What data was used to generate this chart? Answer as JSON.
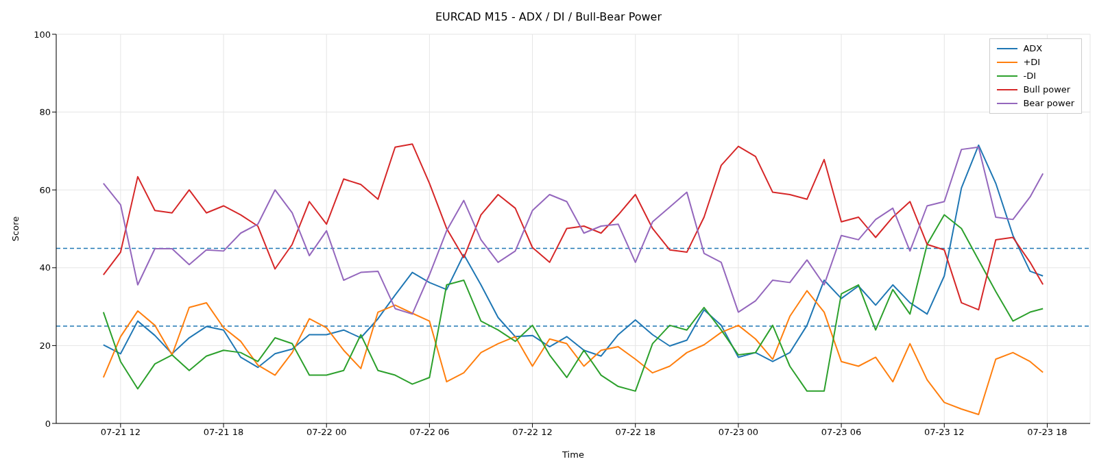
{
  "chart_data": {
    "type": "line",
    "title": "EURCAD M15 - ADX / DI / Bull-Bear Power",
    "xlabel": "Time",
    "ylabel": "Score",
    "x": [
      "--07-21T11:00",
      "--07-21T12:00",
      "--07-21T13:00",
      "--07-21T14:00",
      "--07-21T15:00",
      "--07-21T16:00",
      "--07-21T17:00",
      "--07-21T18:00",
      "--07-21T19:00",
      "--07-21T20:00",
      "--07-21T21:00",
      "--07-21T22:00",
      "--07-21T23:00",
      "--07-22T00:00",
      "--07-22T01:00",
      "--07-22T02:00",
      "--07-22T03:00",
      "--07-22T04:00",
      "--07-22T05:00",
      "--07-22T06:00",
      "--07-22T07:00",
      "--07-22T08:00",
      "--07-22T09:00",
      "--07-22T10:00",
      "--07-22T11:00",
      "--07-22T12:00",
      "--07-22T13:00",
      "--07-22T14:00",
      "--07-22T15:00",
      "--07-22T16:00",
      "--07-22T17:00",
      "--07-22T18:00",
      "--07-22T19:00",
      "--07-22T20:00",
      "--07-22T21:00",
      "--07-22T22:00",
      "--07-22T23:00",
      "--07-23T00:00",
      "--07-23T01:00",
      "--07-23T02:00",
      "--07-23T03:00",
      "--07-23T04:00",
      "--07-23T05:00",
      "--07-23T06:00",
      "--07-23T07:00",
      "--07-23T08:00",
      "--07-23T09:00",
      "--07-23T10:00",
      "--07-23T11:00",
      "--07-23T12:00",
      "--07-23T13:00",
      "--07-23T14:00",
      "--07-23T15:00",
      "--07-23T16:00",
      "--07-23T17:00",
      "--07-23T17:45"
    ],
    "series": [
      {
        "name": "ADX",
        "color": "#1f77b4",
        "values": [
          20.2,
          17.9,
          26.3,
          22.6,
          17.9,
          22,
          24.9,
          24,
          17,
          14.4,
          17.9,
          19.1,
          22.8,
          22.8,
          24,
          22,
          26.9,
          33,
          38.8,
          36.2,
          34.4,
          43.4,
          35.6,
          27.2,
          22.3,
          22.6,
          19.7,
          22.3,
          18.8,
          17.3,
          22.8,
          26.6,
          22.8,
          19.9,
          21.4,
          29.2,
          25.2,
          17,
          18.2,
          15.9,
          18.2,
          25.2,
          36.8,
          32.1,
          35.3,
          30.4,
          35.6,
          31,
          28.1,
          37.9,
          60.5,
          71.5,
          61.7,
          48.3,
          39.1,
          37.9
        ]
      },
      {
        "name": "+DI",
        "color": "#ff7f0e",
        "values": [
          11.8,
          22.3,
          28.9,
          25.2,
          17.6,
          29.8,
          31,
          24.6,
          21.1,
          15,
          12.4,
          18.2,
          26.9,
          24.6,
          18.8,
          14.1,
          28.6,
          30.4,
          28.3,
          26.3,
          10.7,
          13,
          18.2,
          20.5,
          22.3,
          14.7,
          21.7,
          20.5,
          14.7,
          18.8,
          19.7,
          16.5,
          13,
          14.7,
          18.2,
          20.2,
          23.4,
          25.2,
          21.7,
          16.5,
          27.5,
          34.1,
          28.6,
          15.9,
          14.7,
          17,
          10.7,
          20.5,
          11.2,
          5.4,
          3.7,
          2.3,
          16.5,
          18.2,
          15.9,
          13.1
        ]
      },
      {
        "name": "-DI",
        "color": "#2ca02c",
        "values": [
          28.6,
          15.9,
          8.9,
          15.3,
          17.6,
          13.6,
          17.3,
          18.8,
          18.2,
          15.9,
          22,
          20.5,
          12.4,
          12.4,
          13.6,
          22.8,
          13.6,
          12.4,
          10.1,
          11.8,
          35.6,
          36.8,
          26.3,
          24,
          21.1,
          25.2,
          17.6,
          11.8,
          18.8,
          12.4,
          9.5,
          8.3,
          20.5,
          25.2,
          24,
          29.8,
          24,
          17.6,
          18.2,
          25.2,
          14.7,
          8.3,
          8.3,
          33.3,
          35.6,
          24,
          34.4,
          28.1,
          46,
          53.6,
          50.1,
          42,
          33.9,
          26.3,
          28.6,
          29.5
        ]
      },
      {
        "name": "Bull power",
        "color": "#d62728",
        "values": [
          38.2,
          44,
          63.4,
          54.7,
          54.1,
          60,
          54.1,
          55.9,
          53.6,
          50.7,
          39.7,
          46,
          57,
          51.2,
          62.8,
          61.4,
          57.6,
          71,
          71.8,
          61.7,
          50.1,
          42.6,
          53.6,
          58.8,
          55.3,
          45.2,
          41.4,
          50.1,
          50.7,
          48.9,
          53.6,
          58.8,
          50.1,
          44.6,
          44,
          53,
          66.3,
          71.2,
          68.6,
          59.4,
          58.8,
          57.6,
          67.8,
          51.8,
          53,
          47.8,
          53,
          57,
          46,
          44.6,
          31,
          29.2,
          47.2,
          47.8,
          41.4,
          35.7
        ]
      },
      {
        "name": "Bear power",
        "color": "#9467bd",
        "values": [
          61.7,
          56.2,
          35.6,
          44.9,
          44.9,
          40.8,
          44.6,
          44.3,
          48.9,
          51.2,
          60,
          54.1,
          43.1,
          49.5,
          36.8,
          38.8,
          39.1,
          29.5,
          28.1,
          38.2,
          49.5,
          57.3,
          47.2,
          41.4,
          44.3,
          54.7,
          58.8,
          57,
          48.9,
          50.7,
          51.2,
          41.4,
          51.8,
          55.6,
          59.4,
          43.7,
          41.4,
          28.6,
          31.5,
          36.8,
          36.2,
          42,
          35.6,
          48.3,
          47.2,
          52.4,
          55.3,
          44.3,
          55.9,
          57,
          70.4,
          71,
          53,
          52.4,
          58.2,
          64.2
        ]
      }
    ],
    "xlim": [
      "--07-21T08:15",
      "--07-23T20:30"
    ],
    "xticks": [
      {
        "value": "--07-21T12:00",
        "label": "07-21 12"
      },
      {
        "value": "--07-21T18:00",
        "label": "07-21 18"
      },
      {
        "value": "--07-22T00:00",
        "label": "07-22 00"
      },
      {
        "value": "--07-22T06:00",
        "label": "07-22 06"
      },
      {
        "value": "--07-22T12:00",
        "label": "07-22 12"
      },
      {
        "value": "--07-22T18:00",
        "label": "07-22 18"
      },
      {
        "value": "--07-23T00:00",
        "label": "07-23 00"
      },
      {
        "value": "--07-23T06:00",
        "label": "07-23 06"
      },
      {
        "value": "--07-23T12:00",
        "label": "07-23 12"
      },
      {
        "value": "--07-23T18:00",
        "label": "07-23 18"
      }
    ],
    "ylim": [
      0,
      100
    ],
    "yticks": [
      0,
      20,
      40,
      60,
      80,
      100
    ],
    "ref_lines": [
      {
        "axis": "y",
        "value": 45,
        "color": "#1f77b4",
        "line_style": "dashed"
      },
      {
        "axis": "y",
        "value": 25,
        "color": "#1f77b4",
        "line_style": "dashed"
      }
    ],
    "grid": true,
    "legend": "top right"
  }
}
